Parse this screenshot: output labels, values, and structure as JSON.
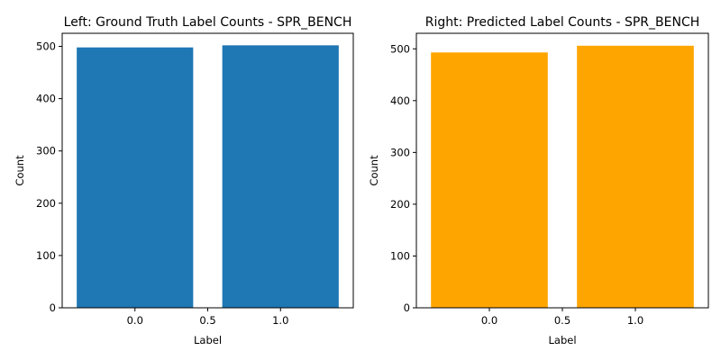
{
  "chart_data": [
    {
      "type": "bar",
      "title": "Left: Ground Truth Label Counts - SPR_BENCH",
      "xlabel": "Label",
      "ylabel": "Count",
      "x": [
        0.0,
        1.0
      ],
      "values": [
        498,
        502
      ],
      "bar_width": 0.8,
      "xlim": [
        -0.5,
        1.5
      ],
      "ylim": [
        0,
        525
      ],
      "xticks": [
        0.0,
        0.5,
        1.0
      ],
      "xtick_labels": [
        "0.0",
        "0.5",
        "1.0"
      ],
      "yticks": [
        0,
        100,
        200,
        300,
        400,
        500
      ],
      "ytick_labels": [
        "0",
        "100",
        "200",
        "300",
        "400",
        "500"
      ],
      "color": "#1f77b4",
      "grid": false
    },
    {
      "type": "bar",
      "title": "Right: Predicted Label Counts - SPR_BENCH",
      "xlabel": "Label",
      "ylabel": "Count",
      "x": [
        0.0,
        1.0
      ],
      "values": [
        493,
        506
      ],
      "bar_width": 0.8,
      "xlim": [
        -0.5,
        1.5
      ],
      "ylim": [
        0,
        530
      ],
      "xticks": [
        0.0,
        0.5,
        1.0
      ],
      "xtick_labels": [
        "0.0",
        "0.5",
        "1.0"
      ],
      "yticks": [
        0,
        100,
        200,
        300,
        400,
        500
      ],
      "ytick_labels": [
        "0",
        "100",
        "200",
        "300",
        "400",
        "500"
      ],
      "color": "#ffa500",
      "grid": false
    }
  ]
}
